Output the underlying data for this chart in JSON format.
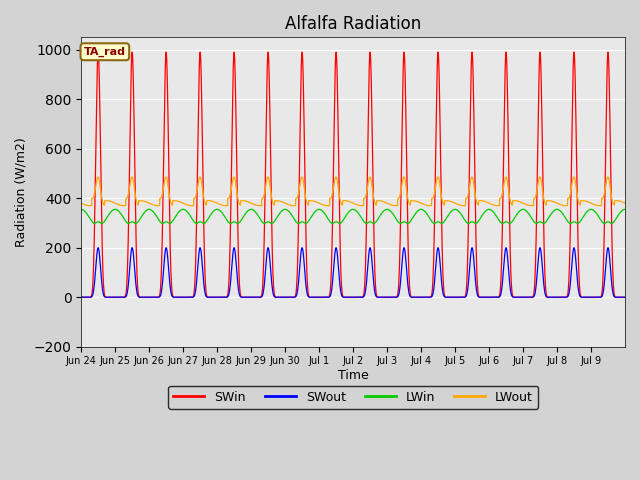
{
  "title": "Alfalfa Radiation",
  "ylabel": "Radiation (W/m2)",
  "xlabel": "Time",
  "ylim": [
    -200,
    1050
  ],
  "background_color": "#d3d3d3",
  "plot_bg_color": "#e8e8e8",
  "series": [
    "SWin",
    "SWout",
    "LWin",
    "LWout"
  ],
  "colors": [
    "#ff0000",
    "#0000ff",
    "#00cc00",
    "#ffa500"
  ],
  "x_tick_labels": [
    "Jun 24",
    "Jun 25",
    "Jun 26",
    "Jun 27",
    "Jun 28",
    "Jun 29",
    "Jun 30",
    "Jul 1",
    "Jul 2",
    "Jul 3",
    "Jul 4",
    "Jul 5",
    "Jul 6",
    "Jul 7",
    "Jul 8",
    "Jul 9"
  ],
  "SWin_peak": 990,
  "SWout_peak": 200,
  "LWin_base": 320,
  "LWin_amp": 35,
  "LWout_base": 390,
  "LWout_amp": 110,
  "num_days": 16,
  "dt_hours": 0.1
}
